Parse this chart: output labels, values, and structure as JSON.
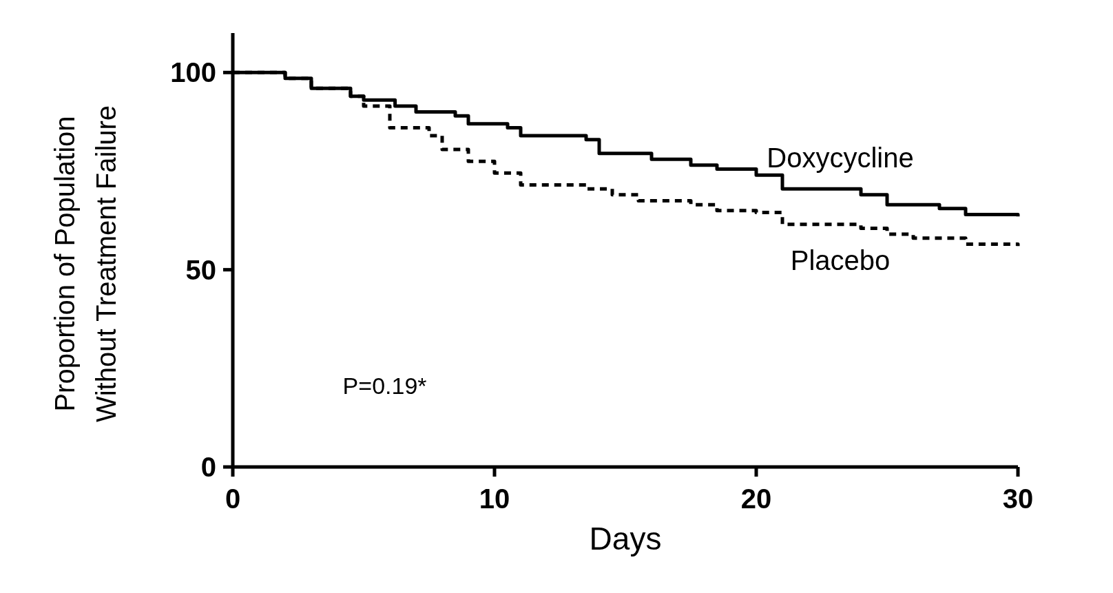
{
  "chart_data": {
    "type": "step",
    "xlabel": "Days",
    "ylabel": "Proportion of Population\nWithout Treatment Failure",
    "xlim": [
      0,
      30
    ],
    "ylim": [
      0,
      110
    ],
    "xticks": [
      0,
      10,
      20,
      30
    ],
    "yticks": [
      0,
      50,
      100
    ],
    "grid": false,
    "annotations": [
      "P=0.19*"
    ],
    "series": [
      {
        "name": "Doxycycline",
        "color": "#000000",
        "line_style": "solid",
        "x": [
          0,
          2,
          3,
          4.5,
          5,
          6.2,
          7,
          8.5,
          9,
          10.5,
          11,
          13.5,
          14,
          16,
          17.5,
          18.5,
          20,
          21,
          24,
          25,
          27,
          28,
          30
        ],
        "values": [
          100,
          98.5,
          96,
          94,
          93,
          91.5,
          90,
          89,
          87,
          86,
          84,
          83,
          79.5,
          78,
          76.5,
          75.5,
          74,
          70.5,
          69,
          66.5,
          65.5,
          64,
          63.5
        ]
      },
      {
        "name": "Placebo",
        "color": "#000000",
        "line_style": "dashed",
        "x": [
          0,
          2,
          3,
          4.5,
          5,
          6,
          7.5,
          8,
          9,
          10,
          11,
          13.5,
          14.5,
          15.5,
          17.5,
          18.5,
          20,
          21,
          24,
          25,
          26,
          28,
          30
        ],
        "values": [
          100,
          98.5,
          96,
          94,
          91.5,
          86,
          84,
          80.5,
          77.5,
          74.5,
          71.5,
          70.5,
          69,
          67.5,
          66.5,
          65,
          64.5,
          61.5,
          60.5,
          59,
          58,
          56.5,
          56
        ]
      }
    ]
  }
}
